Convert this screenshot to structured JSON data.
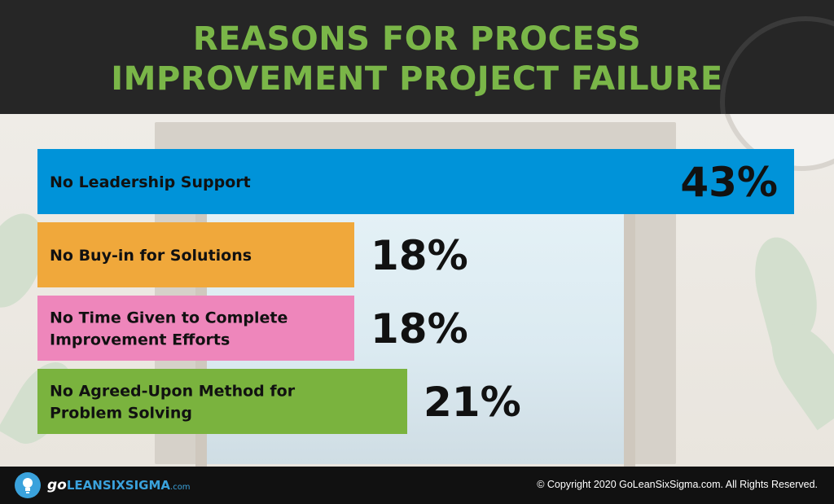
{
  "header": {
    "title_line1": "REASONS FOR PROCESS",
    "title_line2": "IMPROVEMENT PROJECT FAILURE"
  },
  "chart_data": {
    "type": "bar",
    "orientation": "horizontal",
    "title": "REASONS FOR PROCESS IMPROVEMENT PROJECT FAILURE",
    "xlim": [
      0,
      43
    ],
    "grid": false,
    "bars": [
      {
        "label": [
          "No Leadership Support"
        ],
        "value": 43,
        "display": "43%",
        "color": "#0093d9"
      },
      {
        "label": [
          "No Buy-in for Solutions"
        ],
        "value": 18,
        "display": "18%",
        "color": "#f0a83b"
      },
      {
        "label": [
          "No Time Given to Complete",
          "Improvement Efforts"
        ],
        "value": 18,
        "display": "18%",
        "color": "#ee86bb"
      },
      {
        "label": [
          "No Agreed-Upon Method for",
          "Problem Solving"
        ],
        "value": 21,
        "display": "21%",
        "color": "#7ab33e"
      }
    ]
  },
  "footer": {
    "logo_go": "go",
    "logo_main": "LEANSIXSIGMA",
    "logo_com": ".com",
    "copyright": "© Copyright 2020 GoLeanSixSigma.com. All Rights Reserved."
  },
  "colors": {
    "title": "#7ab648",
    "header_bg": "#262626",
    "footer_bg": "#111111",
    "logo_accent": "#3aa2dc"
  },
  "icons": {
    "logo": "lightbulb-icon"
  }
}
